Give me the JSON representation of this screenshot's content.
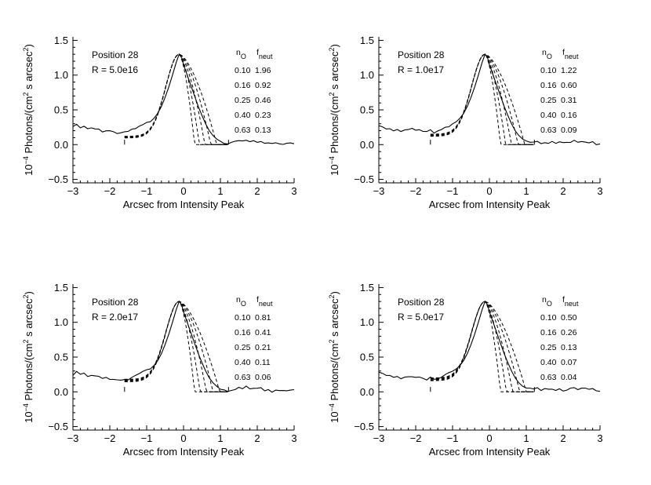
{
  "figure": {
    "y_axis_title_prefix": "10",
    "y_axis_title_exp": "−4",
    "y_axis_title_main": " Photons/(cm",
    "y_axis_title_sq1": "2",
    "y_axis_title_mid": " s arcsec",
    "y_axis_title_sq2": "2",
    "y_axis_title_end": ")"
  },
  "chart_data": [
    {
      "type": "line",
      "title": "",
      "position_label": "Position 28",
      "radius_label": "R = 5.0e16",
      "xlabel": "Arcsec from Intensity Peak",
      "ylabel": "10^-4 Photons/(cm^2 s arcsec^2)",
      "xlim": [
        -3,
        3
      ],
      "ylim": [
        -0.55,
        1.55
      ],
      "xticks": [
        "-3",
        "-2",
        "-1",
        "0",
        "1",
        "2",
        "3"
      ],
      "yticks": [
        "-0.5",
        "0.0",
        "0.5",
        "1.0",
        "1.5"
      ],
      "table_header_n": "n",
      "table_header_n_sub": "O",
      "table_header_f": "f",
      "table_header_f_sub": "neut",
      "models": [
        {
          "n_O": "0.10",
          "f_neut": "1.96"
        },
        {
          "n_O": "0.16",
          "f_neut": "0.92"
        },
        {
          "n_O": "0.25",
          "f_neut": "0.46"
        },
        {
          "n_O": "0.40",
          "f_neut": "0.23"
        },
        {
          "n_O": "0.63",
          "f_neut": "0.13"
        }
      ],
      "model_right_widths": [
        1.02,
        0.86,
        0.7,
        0.55,
        0.42
      ],
      "model_left_floor": 0.12,
      "model_right_end": 1.2
    },
    {
      "type": "line",
      "title": "",
      "position_label": "Position 28",
      "radius_label": "R = 1.0e17",
      "xlabel": "Arcsec from Intensity Peak",
      "ylabel": "10^-4 Photons/(cm^2 s arcsec^2)",
      "xlim": [
        -3,
        3
      ],
      "ylim": [
        -0.55,
        1.55
      ],
      "xticks": [
        "-3",
        "-2",
        "-1",
        "0",
        "1",
        "2",
        "3"
      ],
      "yticks": [
        "-0.5",
        "0.0",
        "0.5",
        "1.0",
        "1.5"
      ],
      "table_header_n": "n",
      "table_header_n_sub": "O",
      "table_header_f": "f",
      "table_header_f_sub": "neut",
      "models": [
        {
          "n_O": "0.10",
          "f_neut": "1.22"
        },
        {
          "n_O": "0.16",
          "f_neut": "0.60"
        },
        {
          "n_O": "0.25",
          "f_neut": "0.31"
        },
        {
          "n_O": "0.40",
          "f_neut": "0.16"
        },
        {
          "n_O": "0.63",
          "f_neut": "0.09"
        }
      ],
      "model_right_widths": [
        1.08,
        0.9,
        0.72,
        0.56,
        0.42
      ],
      "model_left_floor": 0.15,
      "model_right_end": 1.2
    },
    {
      "type": "line",
      "title": "",
      "position_label": "Position 28",
      "radius_label": "R = 2.0e17",
      "xlabel": "Arcsec from Intensity Peak",
      "ylabel": "10^-4 Photons/(cm^2 s arcsec^2)",
      "xlim": [
        -3,
        3
      ],
      "ylim": [
        -0.55,
        1.55
      ],
      "xticks": [
        "-3",
        "-2",
        "-1",
        "0",
        "1",
        "2",
        "3"
      ],
      "yticks": [
        "-0.5",
        "0.0",
        "0.5",
        "1.0",
        "1.5"
      ],
      "table_header_n": "n",
      "table_header_n_sub": "O",
      "table_header_f": "f",
      "table_header_f_sub": "neut",
      "models": [
        {
          "n_O": "0.10",
          "f_neut": "0.81"
        },
        {
          "n_O": "0.16",
          "f_neut": "0.41"
        },
        {
          "n_O": "0.25",
          "f_neut": "0.21"
        },
        {
          "n_O": "0.40",
          "f_neut": "0.11"
        },
        {
          "n_O": "0.63",
          "f_neut": "0.06"
        }
      ],
      "model_right_widths": [
        1.1,
        0.92,
        0.74,
        0.57,
        0.42
      ],
      "model_left_floor": 0.18,
      "model_right_end": 1.2
    },
    {
      "type": "line",
      "title": "",
      "position_label": "Position 28",
      "radius_label": "R = 5.0e17",
      "xlabel": "Arcsec from Intensity Peak",
      "ylabel": "10^-4 Photons/(cm^2 s arcsec^2)",
      "xlim": [
        -3,
        3
      ],
      "ylim": [
        -0.55,
        1.55
      ],
      "xticks": [
        "-3",
        "-2",
        "-1",
        "0",
        "1",
        "2",
        "3"
      ],
      "yticks": [
        "-0.5",
        "0.0",
        "0.5",
        "1.0",
        "1.5"
      ],
      "table_header_n": "n",
      "table_header_n_sub": "O",
      "table_header_f": "f",
      "table_header_f_sub": "neut",
      "models": [
        {
          "n_O": "0.10",
          "f_neut": "0.50"
        },
        {
          "n_O": "0.16",
          "f_neut": "0.26"
        },
        {
          "n_O": "0.25",
          "f_neut": "0.13"
        },
        {
          "n_O": "0.40",
          "f_neut": "0.07"
        },
        {
          "n_O": "0.63",
          "f_neut": "0.04"
        }
      ],
      "model_right_widths": [
        1.12,
        0.94,
        0.75,
        0.58,
        0.42
      ],
      "model_left_floor": 0.2,
      "model_right_end": 1.2
    }
  ],
  "observed_profile": {
    "peak_x": -0.12,
    "peak_y": 1.3,
    "points": [
      [
        -3.0,
        0.26
      ],
      [
        -2.9,
        0.27
      ],
      [
        -2.8,
        0.24
      ],
      [
        -2.7,
        0.25
      ],
      [
        -2.6,
        0.22
      ],
      [
        -2.5,
        0.23
      ],
      [
        -2.4,
        0.21
      ],
      [
        -2.3,
        0.22
      ],
      [
        -2.2,
        0.2
      ],
      [
        -2.1,
        0.21
      ],
      [
        -2.0,
        0.2
      ],
      [
        -1.9,
        0.19
      ],
      [
        -1.8,
        0.18
      ],
      [
        -1.7,
        0.17
      ],
      [
        -1.6,
        0.19
      ],
      [
        -1.5,
        0.18
      ],
      [
        -1.4,
        0.2
      ],
      [
        -1.3,
        0.22
      ],
      [
        -1.2,
        0.25
      ],
      [
        -1.1,
        0.28
      ],
      [
        -1.0,
        0.3
      ],
      [
        -0.9,
        0.33
      ],
      [
        -0.8,
        0.38
      ],
      [
        -0.7,
        0.45
      ],
      [
        -0.6,
        0.55
      ],
      [
        -0.5,
        0.68
      ],
      [
        -0.4,
        0.83
      ],
      [
        -0.3,
        1.0
      ],
      [
        -0.2,
        1.18
      ],
      [
        -0.12,
        1.3
      ],
      [
        -0.05,
        1.25
      ],
      [
        0.0,
        1.15
      ],
      [
        0.1,
        1.0
      ],
      [
        0.2,
        0.85
      ],
      [
        0.3,
        0.7
      ],
      [
        0.4,
        0.55
      ],
      [
        0.5,
        0.42
      ],
      [
        0.6,
        0.3
      ],
      [
        0.7,
        0.2
      ],
      [
        0.8,
        0.13
      ],
      [
        0.9,
        0.08
      ],
      [
        1.0,
        0.05
      ],
      [
        1.1,
        0.03
      ],
      [
        1.2,
        0.03
      ],
      [
        1.3,
        0.04
      ],
      [
        1.4,
        0.03
      ],
      [
        1.5,
        0.05
      ],
      [
        1.6,
        0.04
      ],
      [
        1.7,
        0.06
      ],
      [
        1.8,
        0.04
      ],
      [
        1.9,
        0.05
      ],
      [
        2.0,
        0.03
      ],
      [
        2.1,
        0.05
      ],
      [
        2.2,
        0.03
      ],
      [
        2.3,
        0.04
      ],
      [
        2.4,
        0.02
      ],
      [
        2.5,
        0.04
      ],
      [
        2.6,
        0.03
      ],
      [
        2.7,
        0.02
      ],
      [
        2.8,
        0.04
      ],
      [
        2.9,
        0.02
      ],
      [
        3.0,
        0.01
      ]
    ]
  }
}
